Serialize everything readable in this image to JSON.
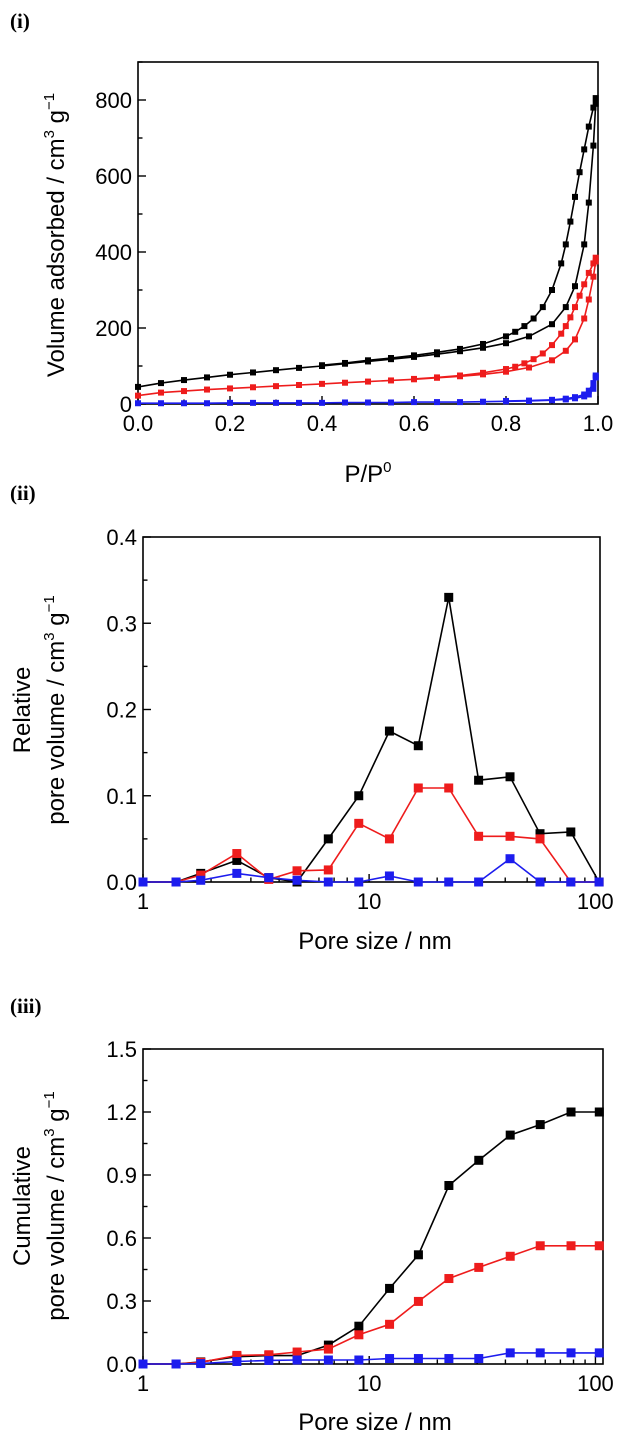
{
  "chart_data": [
    {
      "panel": "(i)",
      "type": "line",
      "xlabel": "P/P",
      "xlabel_sup": "0",
      "ylabel": "Volume adsorbed / cm",
      "ylabel_sup1": "3",
      "ylabel_mid": " g",
      "ylabel_sup2": "−1",
      "xscale": "linear",
      "xlim": [
        0.0,
        1.0
      ],
      "ylim": [
        0,
        900
      ],
      "xticks": [
        0.0,
        0.2,
        0.4,
        0.6,
        0.8,
        1.0
      ],
      "xtick_labels": [
        "0.0",
        "0.2",
        "0.4",
        "0.6",
        "0.8",
        "1.0"
      ],
      "yticks": [
        0,
        200,
        400,
        600,
        800
      ],
      "ytick_labels": [
        "0",
        "200",
        "400",
        "600",
        "800"
      ],
      "series": [
        {
          "color": "#000000",
          "branch": "adsorption",
          "x": [
            0.0,
            0.05,
            0.1,
            0.15,
            0.2,
            0.25,
            0.3,
            0.35,
            0.4,
            0.45,
            0.5,
            0.55,
            0.6,
            0.65,
            0.7,
            0.75,
            0.8,
            0.85,
            0.9,
            0.93,
            0.95,
            0.97,
            0.98,
            0.99,
            0.995
          ],
          "y": [
            45,
            55,
            63,
            70,
            77,
            83,
            89,
            95,
            100,
            106,
            112,
            118,
            124,
            131,
            139,
            148,
            160,
            178,
            210,
            255,
            310,
            420,
            530,
            680,
            790
          ]
        },
        {
          "color": "#000000",
          "branch": "desorption",
          "x": [
            0.995,
            0.99,
            0.98,
            0.97,
            0.96,
            0.95,
            0.94,
            0.93,
            0.92,
            0.9,
            0.88,
            0.86,
            0.84,
            0.82,
            0.8,
            0.75,
            0.7,
            0.65,
            0.6,
            0.55,
            0.5,
            0.45,
            0.4
          ],
          "y": [
            805,
            780,
            730,
            670,
            610,
            545,
            480,
            420,
            370,
            300,
            255,
            225,
            205,
            190,
            178,
            158,
            145,
            136,
            128,
            121,
            115,
            108,
            102
          ]
        },
        {
          "color": "#ee1c1c",
          "branch": "adsorption",
          "x": [
            0.0,
            0.05,
            0.1,
            0.15,
            0.2,
            0.25,
            0.3,
            0.35,
            0.4,
            0.45,
            0.5,
            0.55,
            0.6,
            0.65,
            0.7,
            0.75,
            0.8,
            0.85,
            0.9,
            0.93,
            0.95,
            0.97,
            0.98,
            0.99,
            0.995
          ],
          "y": [
            22,
            30,
            34,
            38,
            41,
            44,
            47,
            50,
            53,
            56,
            59,
            62,
            65,
            69,
            73,
            78,
            85,
            96,
            115,
            140,
            170,
            225,
            275,
            335,
            375
          ]
        },
        {
          "color": "#ee1c1c",
          "branch": "desorption",
          "x": [
            0.995,
            0.99,
            0.98,
            0.97,
            0.96,
            0.95,
            0.94,
            0.93,
            0.92,
            0.9,
            0.88,
            0.86,
            0.84,
            0.82,
            0.8,
            0.75,
            0.7,
            0.65,
            0.6
          ],
          "y": [
            385,
            370,
            345,
            315,
            285,
            255,
            228,
            205,
            185,
            155,
            133,
            118,
            107,
            98,
            92,
            82,
            75,
            70,
            66
          ]
        },
        {
          "color": "#1c1cee",
          "branch": "adsorption",
          "x": [
            0.0,
            0.05,
            0.1,
            0.15,
            0.2,
            0.25,
            0.3,
            0.35,
            0.4,
            0.45,
            0.5,
            0.55,
            0.6,
            0.65,
            0.7,
            0.75,
            0.8,
            0.85,
            0.9,
            0.93,
            0.95,
            0.97,
            0.98,
            0.99,
            0.995
          ],
          "y": [
            2,
            2,
            2,
            2,
            3,
            3,
            3,
            3,
            3,
            4,
            4,
            4,
            5,
            5,
            5,
            6,
            7,
            8,
            10,
            12,
            15,
            20,
            25,
            40,
            70
          ]
        },
        {
          "color": "#1c1cee",
          "branch": "desorption",
          "x": [
            0.995,
            0.99,
            0.98,
            0.97,
            0.95,
            0.93,
            0.9,
            0.85,
            0.8
          ],
          "y": [
            75,
            55,
            35,
            25,
            18,
            14,
            11,
            9,
            8
          ]
        }
      ]
    },
    {
      "panel": "(ii)",
      "type": "line",
      "xlabel": "Pore size / nm",
      "ylabel_line1": "Relative",
      "ylabel": "pore volume / cm",
      "ylabel_sup1": "3",
      "ylabel_mid": " g",
      "ylabel_sup2": "−1",
      "xscale": "log",
      "xlim": [
        1,
        105
      ],
      "ylim": [
        0.0,
        0.4
      ],
      "xticks": [
        1,
        10,
        100
      ],
      "xtick_labels": [
        "1",
        "10",
        "100"
      ],
      "yticks": [
        0.0,
        0.1,
        0.2,
        0.3,
        0.4
      ],
      "ytick_labels": [
        "0.0",
        "0.1",
        "0.2",
        "0.3",
        "0.4"
      ],
      "series": [
        {
          "color": "#000000",
          "x": [
            1,
            1.4,
            1.8,
            2.6,
            3.6,
            4.8,
            6.6,
            9.0,
            12.3,
            16.5,
            22.5,
            30.5,
            42,
            57,
            78,
            104
          ],
          "y": [
            0.0,
            0.0,
            0.01,
            0.025,
            0.005,
            0.0,
            0.05,
            0.1,
            0.175,
            0.158,
            0.33,
            0.118,
            0.122,
            0.056,
            0.058,
            0.0
          ]
        },
        {
          "color": "#ee1c1c",
          "x": [
            1,
            1.4,
            1.8,
            2.6,
            3.6,
            4.8,
            6.6,
            9.0,
            12.3,
            16.5,
            22.5,
            30.5,
            42,
            57,
            78,
            104
          ],
          "y": [
            0.0,
            0.0,
            0.008,
            0.033,
            0.003,
            0.013,
            0.014,
            0.068,
            0.05,
            0.109,
            0.109,
            0.053,
            0.053,
            0.05,
            0.0,
            0.0
          ]
        },
        {
          "color": "#1c1cee",
          "x": [
            1,
            1.4,
            1.8,
            2.6,
            3.6,
            4.8,
            6.6,
            9.0,
            12.3,
            16.5,
            22.5,
            30.5,
            42,
            57,
            78,
            104
          ],
          "y": [
            0.0,
            0.0,
            0.002,
            0.01,
            0.005,
            0.002,
            0.0,
            0.0,
            0.007,
            0.0,
            0.0,
            0.0,
            0.027,
            0.0,
            0.0,
            0.0
          ]
        }
      ]
    },
    {
      "panel": "(iii)",
      "type": "line",
      "xlabel": "Pore size / nm",
      "ylabel_line1": "Cumulative",
      "ylabel": "pore volume / cm",
      "ylabel_sup1": "3",
      "ylabel_mid": " g",
      "ylabel_sup2": "−1",
      "xscale": "log",
      "xlim": [
        1,
        108
      ],
      "ylim": [
        0.0,
        1.5
      ],
      "xticks": [
        1,
        10,
        100
      ],
      "xtick_labels": [
        "1",
        "10",
        "100"
      ],
      "yticks": [
        0.0,
        0.3,
        0.6,
        0.9,
        1.2,
        1.5
      ],
      "ytick_labels": [
        "0.0",
        "0.3",
        "0.6",
        "0.9",
        "1.2",
        "1.5"
      ],
      "series": [
        {
          "color": "#000000",
          "x": [
            1,
            1.4,
            1.8,
            2.6,
            3.6,
            4.8,
            6.6,
            9.0,
            12.3,
            16.5,
            22.5,
            30.5,
            42,
            57,
            78,
            104
          ],
          "y": [
            0.0,
            0.0,
            0.01,
            0.035,
            0.04,
            0.04,
            0.09,
            0.18,
            0.36,
            0.52,
            0.85,
            0.97,
            1.09,
            1.14,
            1.2,
            1.2
          ]
        },
        {
          "color": "#ee1c1c",
          "x": [
            1,
            1.4,
            1.8,
            2.6,
            3.6,
            4.8,
            6.6,
            9.0,
            12.3,
            16.5,
            22.5,
            30.5,
            42,
            57,
            78,
            104
          ],
          "y": [
            0.0,
            0.0,
            0.008,
            0.041,
            0.044,
            0.057,
            0.071,
            0.139,
            0.189,
            0.298,
            0.407,
            0.46,
            0.513,
            0.563,
            0.563,
            0.563
          ]
        },
        {
          "color": "#1c1cee",
          "x": [
            1,
            1.4,
            1.8,
            2.6,
            3.6,
            4.8,
            6.6,
            9.0,
            12.3,
            16.5,
            22.5,
            30.5,
            42,
            57,
            78,
            104
          ],
          "y": [
            0.0,
            0.0,
            0.002,
            0.012,
            0.017,
            0.019,
            0.019,
            0.019,
            0.026,
            0.026,
            0.026,
            0.026,
            0.053,
            0.053,
            0.053,
            0.053
          ]
        }
      ]
    }
  ]
}
